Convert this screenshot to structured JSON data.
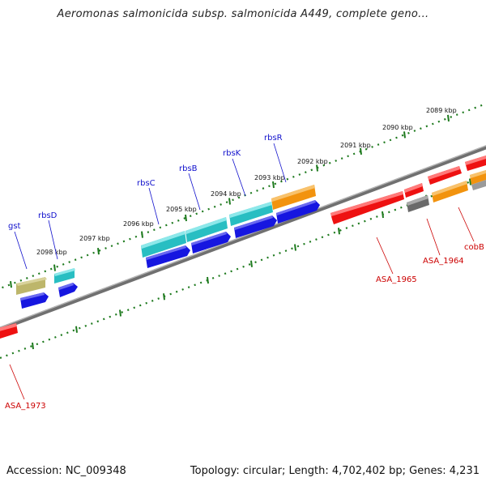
{
  "header": {
    "title": "Aeromonas salmonicida subsp. salmonicida A449, complete geno..."
  },
  "footer": {
    "accession": "Accession: NC_009348",
    "summary": "Topology: circular; Length: 4,702,402 bp; Genes: 4,231"
  },
  "colors": {
    "forward_cds": "#3ecfd2",
    "reverse_cds": "#1616e0",
    "other_cds_red": "#ee1111",
    "orange_cds": "#f2930e",
    "gray_cds": "#6a6a6a",
    "olive_cds": "#bdb66b",
    "backbone": "#8c8c8c",
    "scale": "#1e7a1e",
    "label_blue": "#1010cc",
    "label_red": "#cc0000"
  },
  "scale": {
    "ticks": [
      "2089 kbp",
      "2090 kbp",
      "2091 kbp",
      "2092 kbp",
      "2093 kbp",
      "2094 kbp",
      "2095 kbp",
      "2096 kbp",
      "2097 kbp",
      "2098 kbp"
    ]
  },
  "genes": {
    "labels_top": [
      "gst",
      "rbsD",
      "rbsC",
      "rbsB",
      "rbsK",
      "rbsR"
    ],
    "labels_bottom": [
      "ASA_1973",
      "ASA_1965",
      "ASA_1964",
      "cobB"
    ]
  }
}
